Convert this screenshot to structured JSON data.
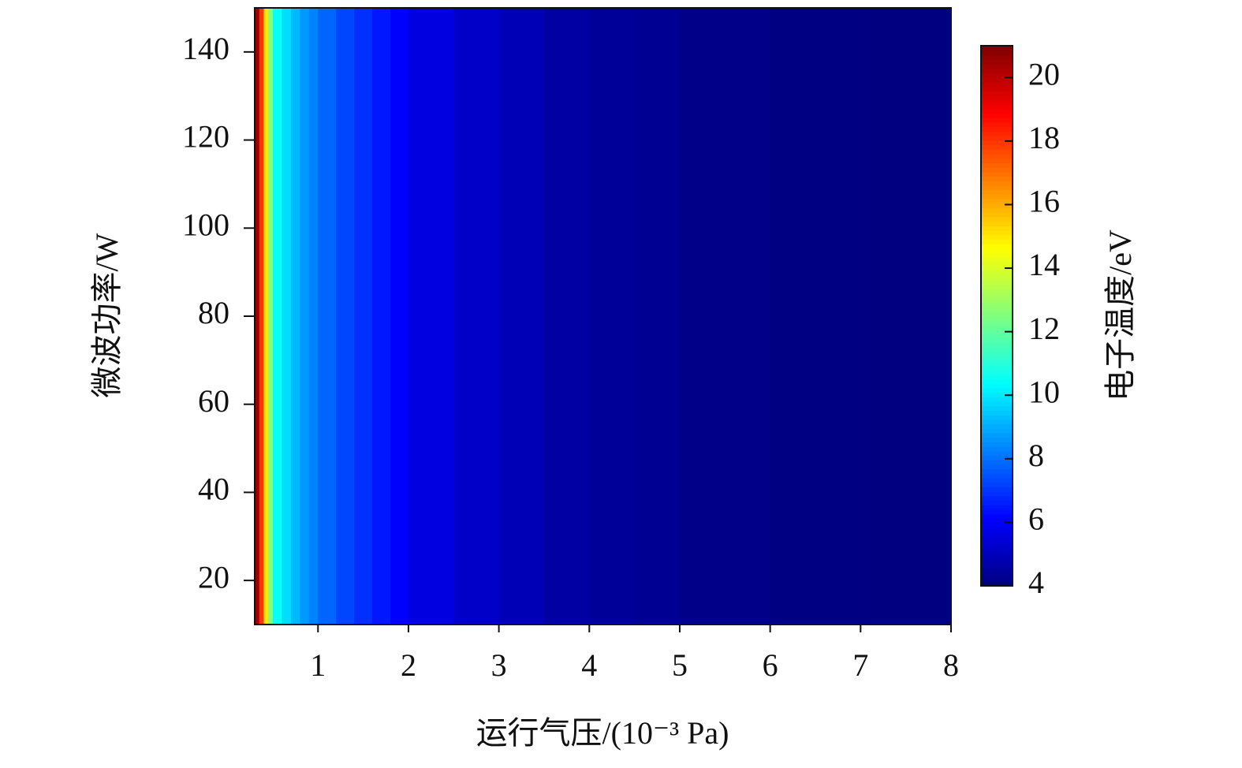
{
  "chart_data": {
    "type": "heatmap",
    "x_label": "运行气压/(10⁻³ Pa)",
    "y_label": "微波功率/W",
    "colorbar_label": "电子温度/eV",
    "colormap": "jet",
    "x_bins": [
      0.3,
      0.35,
      0.4,
      0.45,
      0.5,
      0.6,
      0.7,
      0.8,
      0.9,
      1.0,
      1.2,
      1.4,
      1.6,
      1.8,
      2.0,
      2.5,
      3.0,
      3.5,
      4.0,
      4.5,
      5.0,
      6.0,
      7.0,
      8.0
    ],
    "values": [
      20.5,
      18,
      15,
      12.5,
      10.5,
      9.8,
      9.2,
      8.7,
      8.3,
      7.8,
      7.3,
      6.9,
      6.5,
      6.1,
      5.6,
      5.2,
      4.9,
      4.6,
      4.4,
      4.3,
      4.15,
      4.05,
      4.0
    ],
    "xlim": [
      0.3,
      8
    ],
    "xticks": [
      1,
      2,
      3,
      4,
      5,
      6,
      7,
      8
    ],
    "ylim": [
      10,
      150
    ],
    "yticks": [
      20,
      40,
      60,
      80,
      100,
      120,
      140
    ],
    "clim": [
      4,
      21
    ],
    "cticks": [
      4,
      6,
      8,
      10,
      12,
      14,
      16,
      18,
      20
    ]
  }
}
